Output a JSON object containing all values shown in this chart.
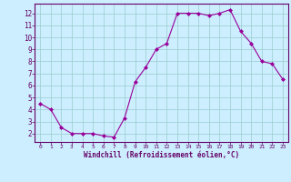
{
  "x": [
    0,
    1,
    2,
    3,
    4,
    5,
    6,
    7,
    8,
    9,
    10,
    11,
    12,
    13,
    14,
    15,
    16,
    17,
    18,
    19,
    20,
    21,
    22,
    23
  ],
  "y": [
    4.5,
    4.0,
    2.5,
    2.0,
    2.0,
    2.0,
    1.8,
    1.7,
    3.3,
    6.3,
    7.5,
    9.0,
    9.5,
    12.0,
    12.0,
    12.0,
    11.8,
    12.0,
    12.3,
    10.5,
    9.5,
    8.0,
    7.8,
    6.5
  ],
  "line_color": "#990099",
  "marker": "D",
  "marker_size": 2,
  "bg_color": "#cceeff",
  "grid_color": "#99cccc",
  "xlabel": "Windchill (Refroidissement éolien,°C)",
  "xlabel_color": "#660066",
  "tick_color": "#660066",
  "xlim": [
    -0.5,
    23.5
  ],
  "ylim": [
    1.3,
    12.8
  ],
  "yticks": [
    2,
    3,
    4,
    5,
    6,
    7,
    8,
    9,
    10,
    11,
    12
  ],
  "xticks": [
    0,
    1,
    2,
    3,
    4,
    5,
    6,
    7,
    8,
    9,
    10,
    11,
    12,
    13,
    14,
    15,
    16,
    17,
    18,
    19,
    20,
    21,
    22,
    23
  ],
  "border_color": "#660066"
}
